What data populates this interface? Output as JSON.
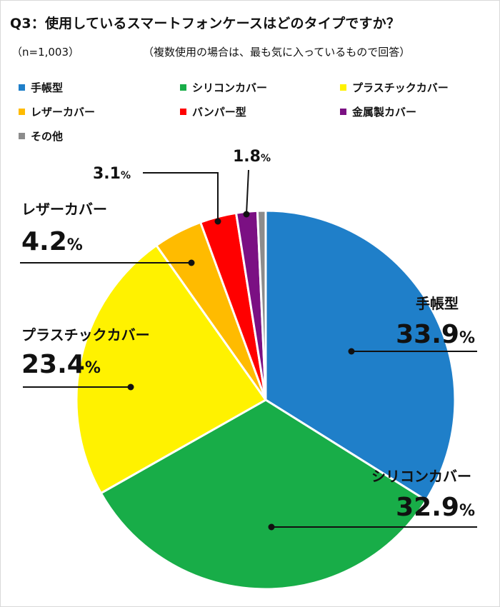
{
  "header": {
    "title": "Q3：使用しているスマートフォンケースはどのタイプですか？",
    "sample_size": "（n=1,003）",
    "note": "（複数使用の場合は、最も気に入っているもので回答）"
  },
  "chart_data": {
    "type": "pie",
    "title": "Q3：使用しているスマートフォンケースはどのタイプですか？",
    "legend_position": "top",
    "slices": [
      {
        "label": "手帳型",
        "value": 33.9,
        "display": "33.9",
        "color": "#1f7fc9"
      },
      {
        "label": "シリコンカバー",
        "value": 32.9,
        "display": "32.9",
        "color": "#18ad48"
      },
      {
        "label": "プラスチックカバー",
        "value": 23.4,
        "display": "23.4",
        "color": "#fff200"
      },
      {
        "label": "レザーカバー",
        "value": 4.2,
        "display": "4.2",
        "color": "#ffbb00"
      },
      {
        "label": "バンパー型",
        "value": 3.1,
        "display": "3.1",
        "color": "#ff0000"
      },
      {
        "label": "金属製カバー",
        "value": 1.8,
        "display": "1.8",
        "color": "#7b1083"
      },
      {
        "label": "その他",
        "value": 0.7,
        "display": "",
        "color": "#8c8c8c"
      }
    ],
    "percent_unit": "%"
  }
}
